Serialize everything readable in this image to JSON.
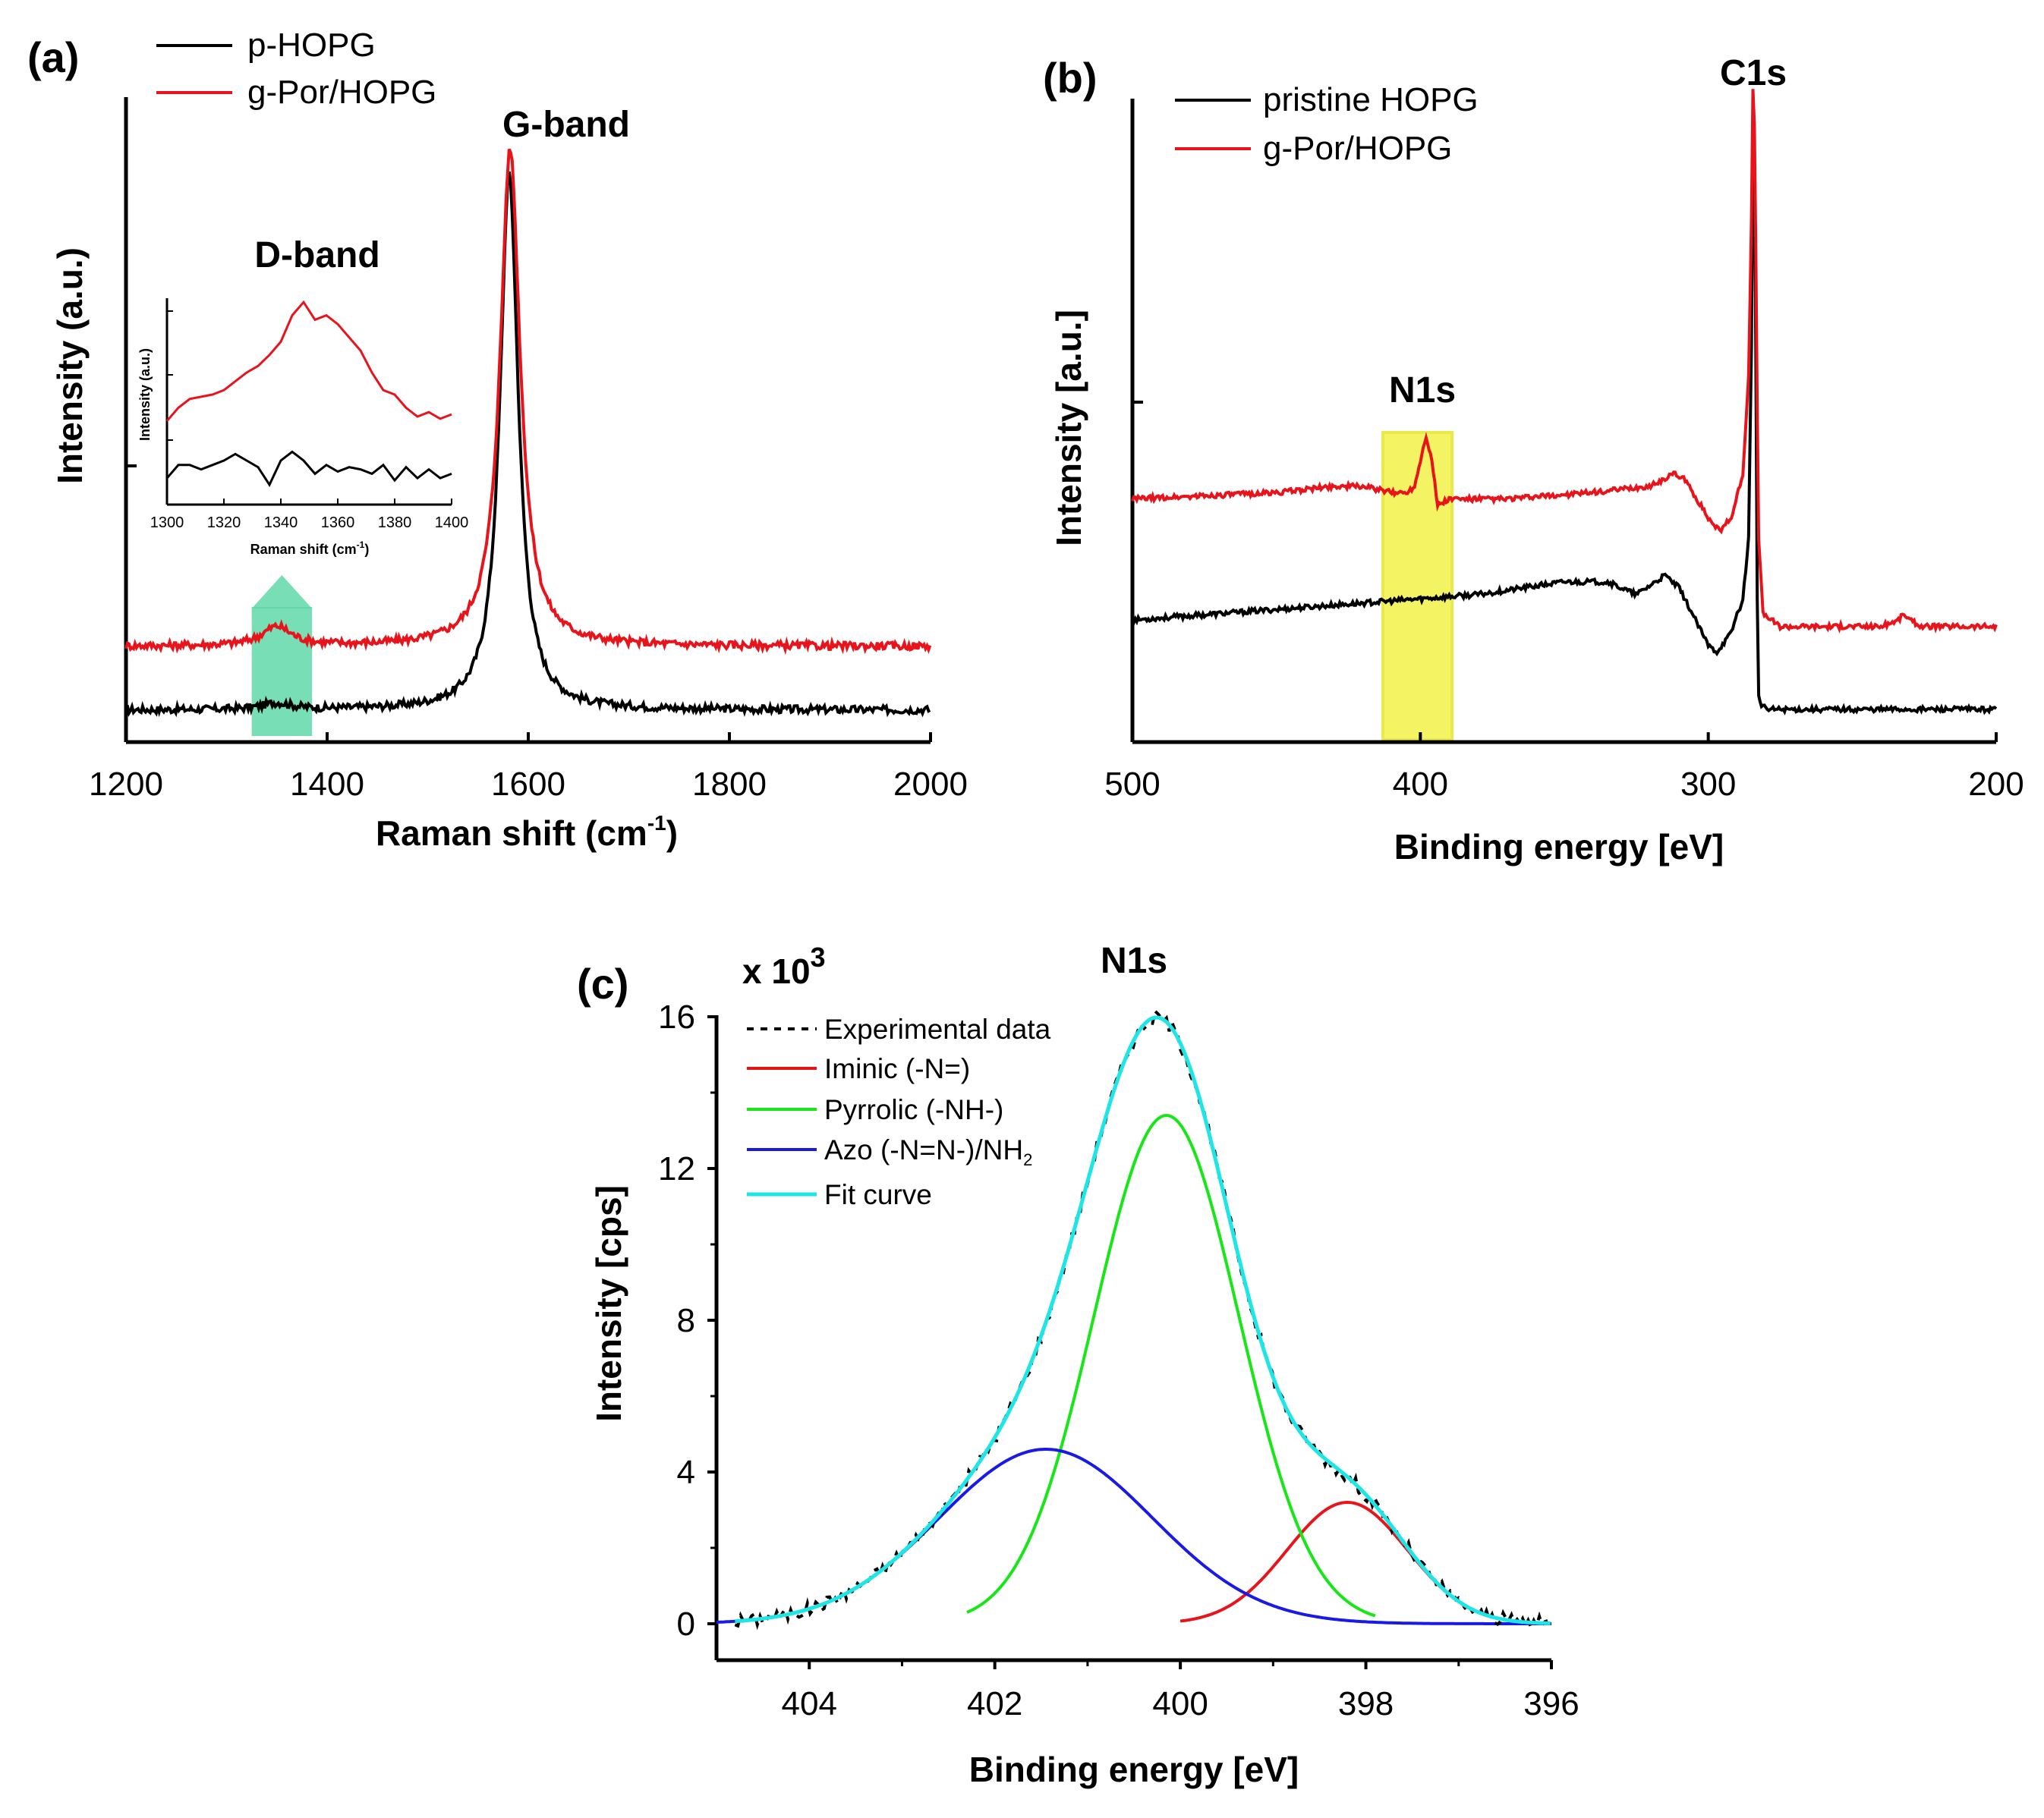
{
  "chart_data": [
    {
      "panel": "(a)",
      "type": "line",
      "xlabel": "Raman shift (cm",
      "xlabel_sup": "-1",
      "xlabel_end": ")",
      "ylabel": "Intensity (a.u.)",
      "xlim": [
        1200,
        2000
      ],
      "xticks": [
        1200,
        1400,
        1600,
        1800,
        2000
      ],
      "legend": [
        {
          "name": "p-HOPG",
          "color": "#000000"
        },
        {
          "name": "g-Por/HOPG",
          "color": "#e8141c"
        }
      ],
      "annotations": [
        "G-band",
        "D-band"
      ],
      "highlight": {
        "x_range": [
          1325,
          1385
        ],
        "color": "#5fd8a8"
      },
      "series": [
        {
          "name": "p-HOPG",
          "color": "#000000",
          "baseline": 0.05,
          "peaks": [
            [
              1581,
              0.84,
              11
            ],
            [
              1350,
              0.01,
              18
            ]
          ]
        },
        {
          "name": "g-Por/HOPG",
          "color": "#e8141c",
          "baseline": 0.15,
          "peaks": [
            [
              1582,
              0.78,
              12
            ],
            [
              1350,
              0.03,
              18
            ]
          ]
        }
      ],
      "inset": {
        "xlabel": "Raman shift (cm",
        "xlabel_sup": "-1",
        "xlabel_end": ")",
        "ylabel": "Intensity (a.u.)",
        "xlim": [
          1300,
          1400
        ],
        "xticks": [
          1300,
          1320,
          1340,
          1360,
          1380,
          1400
        ],
        "series": [
          {
            "name": "g-Por/HOPG",
            "color": "#e8141c",
            "x": [
              1300,
              1304,
              1308,
              1312,
              1316,
              1320,
              1324,
              1328,
              1332,
              1336,
              1340,
              1344,
              1348,
              1352,
              1356,
              1360,
              1364,
              1368,
              1372,
              1376,
              1380,
              1384,
              1388,
              1392,
              1396,
              1400
            ],
            "y": [
              0.38,
              0.44,
              0.48,
              0.49,
              0.5,
              0.52,
              0.56,
              0.6,
              0.63,
              0.68,
              0.74,
              0.86,
              0.92,
              0.84,
              0.86,
              0.82,
              0.76,
              0.7,
              0.6,
              0.52,
              0.5,
              0.44,
              0.4,
              0.42,
              0.39,
              0.41
            ]
          },
          {
            "name": "p-HOPG",
            "color": "#000000",
            "x": [
              1300,
              1304,
              1308,
              1312,
              1316,
              1320,
              1324,
              1328,
              1332,
              1336,
              1340,
              1344,
              1348,
              1352,
              1356,
              1360,
              1364,
              1368,
              1372,
              1376,
              1380,
              1384,
              1388,
              1392,
              1396,
              1400
            ],
            "y": [
              0.12,
              0.18,
              0.18,
              0.16,
              0.18,
              0.2,
              0.23,
              0.2,
              0.17,
              0.09,
              0.2,
              0.24,
              0.2,
              0.14,
              0.18,
              0.15,
              0.17,
              0.16,
              0.14,
              0.18,
              0.11,
              0.17,
              0.12,
              0.16,
              0.12,
              0.14
            ]
          }
        ]
      }
    },
    {
      "panel": "(b)",
      "type": "line",
      "xlabel": "Binding energy [eV]",
      "ylabel": "Intensity [a.u.]",
      "xlim": [
        500,
        200
      ],
      "xticks": [
        500,
        400,
        300,
        200
      ],
      "legend": [
        {
          "name": "pristine HOPG",
          "color": "#000000"
        },
        {
          "name": "g-Por/HOPG",
          "color": "#e8141c"
        }
      ],
      "annotations": [
        "C1s",
        "N1s"
      ],
      "highlight": {
        "x_range": [
          413,
          389
        ],
        "color": "#f2f24a"
      },
      "series": [
        {
          "name": "pristine HOPG",
          "color": "#000000",
          "x": [
            500,
            470,
            440,
            410,
            380,
            350,
            335,
            325,
            315,
            310,
            300,
            297,
            292,
            290,
            288,
            286,
            285,
            284.5,
            284,
            283.5,
            283,
            282.5,
            282,
            280,
            270,
            250,
            230,
            200
          ],
          "y": [
            0.17,
            0.18,
            0.19,
            0.2,
            0.21,
            0.23,
            0.23,
            0.21,
            0.24,
            0.22,
            0.13,
            0.12,
            0.15,
            0.18,
            0.2,
            0.3,
            0.6,
            0.95,
            0.88,
            0.6,
            0.2,
            0.05,
            0.04,
            0.03,
            0.03,
            0.03,
            0.03,
            0.03
          ]
        },
        {
          "name": "g-Por/HOPG",
          "color": "#e8141c",
          "x": [
            500,
            450,
            430,
            420,
            410,
            405,
            402,
            400,
            398,
            396,
            394,
            390,
            370,
            340,
            320,
            312,
            308,
            300,
            296,
            292,
            288,
            286,
            285,
            284.5,
            284,
            283.5,
            283,
            282.5,
            281,
            275,
            240,
            234,
            232,
            230,
            226,
            215,
            200
          ],
          "y": [
            0.36,
            0.37,
            0.38,
            0.38,
            0.37,
            0.37,
            0.38,
            0.42,
            0.46,
            0.42,
            0.35,
            0.36,
            0.36,
            0.37,
            0.38,
            0.4,
            0.39,
            0.33,
            0.31,
            0.33,
            0.4,
            0.55,
            0.8,
            1.0,
            0.95,
            0.75,
            0.5,
            0.3,
            0.18,
            0.16,
            0.16,
            0.17,
            0.18,
            0.17,
            0.16,
            0.16,
            0.16
          ]
        }
      ]
    },
    {
      "panel": "(c)",
      "type": "line",
      "title": "N1s",
      "multiplier": "x 10",
      "multiplier_exp": "3",
      "xlabel": "Binding energy [eV]",
      "ylabel": "Intensity [cps]",
      "xlim": [
        405,
        396
      ],
      "ylim": [
        -0.2,
        16
      ],
      "xticks": [
        404,
        402,
        400,
        398,
        396
      ],
      "yticks": [
        0,
        4,
        8,
        12,
        16
      ],
      "components": [
        {
          "name": "Iminic (-N=)",
          "color": "#e8141c",
          "center": 398.2,
          "amplitude": 3.2,
          "sigma": 0.65
        },
        {
          "name": "Pyrrolic (-NH-)",
          "color": "#19e619",
          "center": 400.15,
          "amplitude": 13.4,
          "sigma": 0.78
        },
        {
          "name": "Azo (-N=N-)/NH",
          "name_sub": "2",
          "color": "#1a1ae6",
          "center": 401.45,
          "amplitude": 4.6,
          "sigma": 1.15
        }
      ],
      "legend": [
        {
          "name": "Experimental data",
          "color": "#000000",
          "style": "dashed"
        },
        {
          "name": "Iminic (-N=)",
          "color": "#e8141c"
        },
        {
          "name": "Pyrrolic (-NH-)",
          "color": "#19e619"
        },
        {
          "name": "Azo (-N=N-)/NH",
          "sub": "2",
          "color": "#1a1ae6"
        },
        {
          "name": "Fit curve",
          "color": "#1ee6e6"
        }
      ]
    }
  ]
}
